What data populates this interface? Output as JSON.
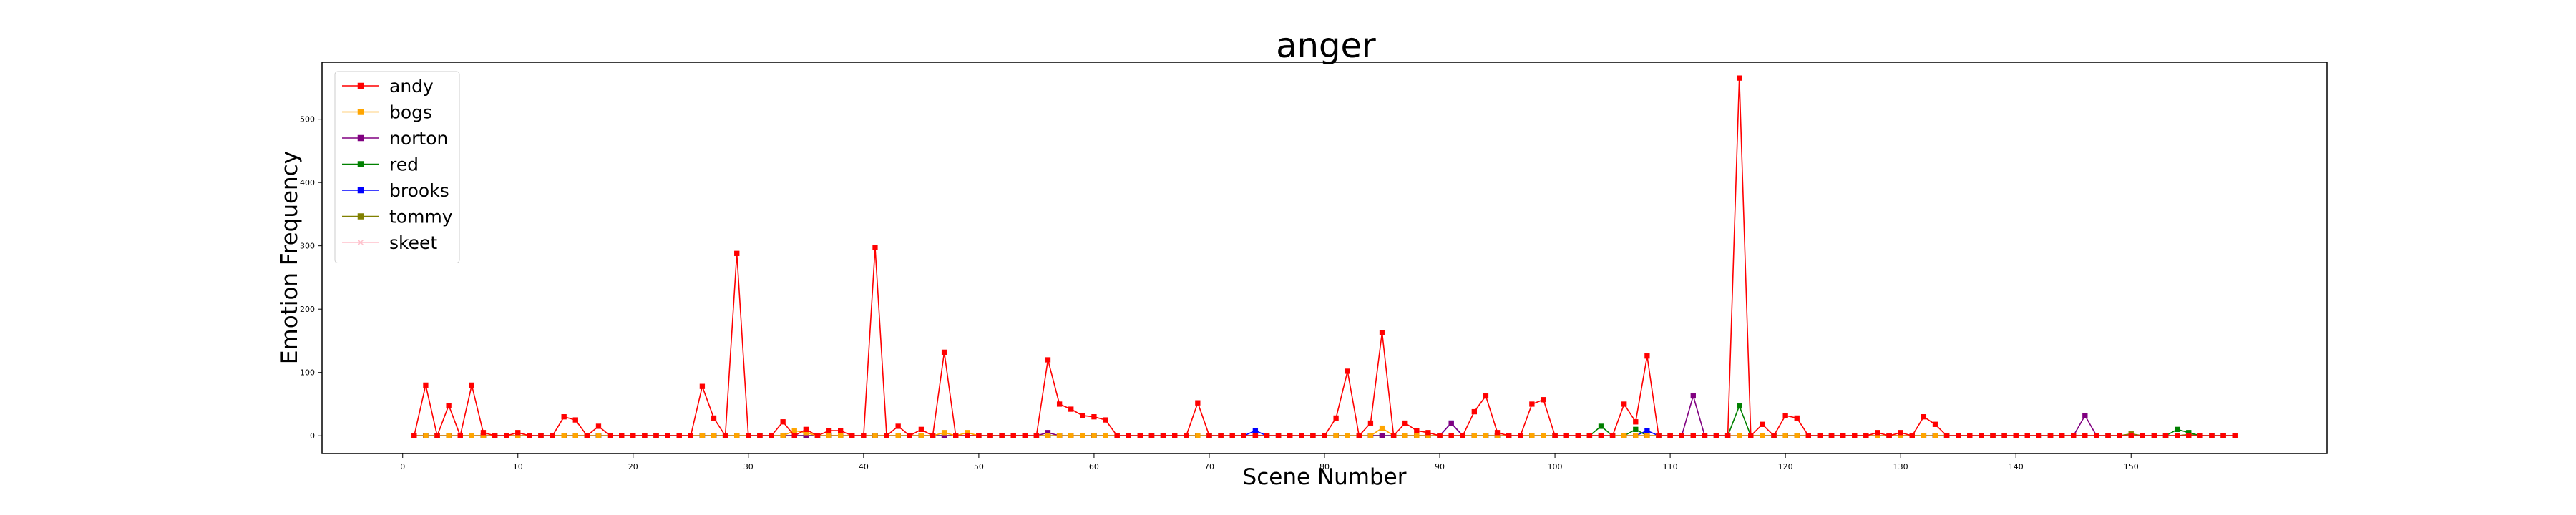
{
  "chart_data": {
    "type": "line",
    "title": "anger",
    "xlabel": "Scene Number",
    "ylabel": "Emotion Frequency",
    "xlim": [
      -7,
      167
    ],
    "ylim": [
      -28,
      590
    ],
    "x_ticks": [
      0,
      10,
      20,
      30,
      40,
      50,
      60,
      70,
      80,
      90,
      100,
      110,
      120,
      130,
      140,
      150
    ],
    "y_ticks": [
      0,
      100,
      200,
      300,
      400,
      500
    ],
    "x_range": [
      1,
      159
    ],
    "legend_position": "upper-left",
    "grid": false,
    "series": [
      {
        "name": "andy",
        "color": "#ff0000",
        "marker": "square",
        "points": [
          [
            2,
            80
          ],
          [
            4,
            48
          ],
          [
            6,
            80
          ],
          [
            7,
            5
          ],
          [
            10,
            5
          ],
          [
            14,
            30
          ],
          [
            15,
            25
          ],
          [
            17,
            15
          ],
          [
            26,
            78
          ],
          [
            27,
            28
          ],
          [
            29,
            288
          ],
          [
            33,
            22
          ],
          [
            35,
            10
          ],
          [
            37,
            8
          ],
          [
            38,
            8
          ],
          [
            41,
            297
          ],
          [
            43,
            15
          ],
          [
            45,
            10
          ],
          [
            47,
            132
          ],
          [
            56,
            120
          ],
          [
            57,
            50
          ],
          [
            58,
            42
          ],
          [
            59,
            32
          ],
          [
            60,
            30
          ],
          [
            61,
            25
          ],
          [
            69,
            52
          ],
          [
            81,
            28
          ],
          [
            82,
            102
          ],
          [
            84,
            20
          ],
          [
            85,
            163
          ],
          [
            87,
            20
          ],
          [
            88,
            8
          ],
          [
            89,
            5
          ],
          [
            93,
            38
          ],
          [
            94,
            63
          ],
          [
            95,
            5
          ],
          [
            98,
            50
          ],
          [
            99,
            57
          ],
          [
            106,
            50
          ],
          [
            107,
            22
          ],
          [
            108,
            126
          ],
          [
            116,
            565
          ],
          [
            118,
            18
          ],
          [
            120,
            32
          ],
          [
            121,
            28
          ],
          [
            128,
            5
          ],
          [
            130,
            5
          ],
          [
            132,
            30
          ],
          [
            133,
            18
          ]
        ]
      },
      {
        "name": "bogs",
        "color": "#ffa500",
        "marker": "square",
        "points": [
          [
            34,
            8
          ],
          [
            35,
            5
          ],
          [
            47,
            5
          ],
          [
            49,
            5
          ],
          [
            85,
            12
          ]
        ]
      },
      {
        "name": "norton",
        "color": "#800080",
        "marker": "square",
        "points": [
          [
            56,
            5
          ],
          [
            91,
            20
          ],
          [
            112,
            63
          ],
          [
            146,
            32
          ]
        ]
      },
      {
        "name": "red",
        "color": "#008000",
        "marker": "square",
        "points": [
          [
            104,
            15
          ],
          [
            107,
            10
          ],
          [
            116,
            47
          ],
          [
            154,
            10
          ],
          [
            155,
            5
          ]
        ]
      },
      {
        "name": "brooks",
        "color": "#0000ff",
        "marker": "square",
        "points": [
          [
            74,
            8
          ],
          [
            91,
            20
          ],
          [
            108,
            8
          ]
        ]
      },
      {
        "name": "tommy",
        "color": "#808000",
        "marker": "square",
        "points": [
          [
            70,
            0
          ],
          [
            85,
            0
          ],
          [
            150,
            3
          ],
          [
            155,
            2
          ]
        ]
      },
      {
        "name": "skeet",
        "color": "#ffc0cb",
        "marker": "x",
        "points": []
      }
    ]
  }
}
